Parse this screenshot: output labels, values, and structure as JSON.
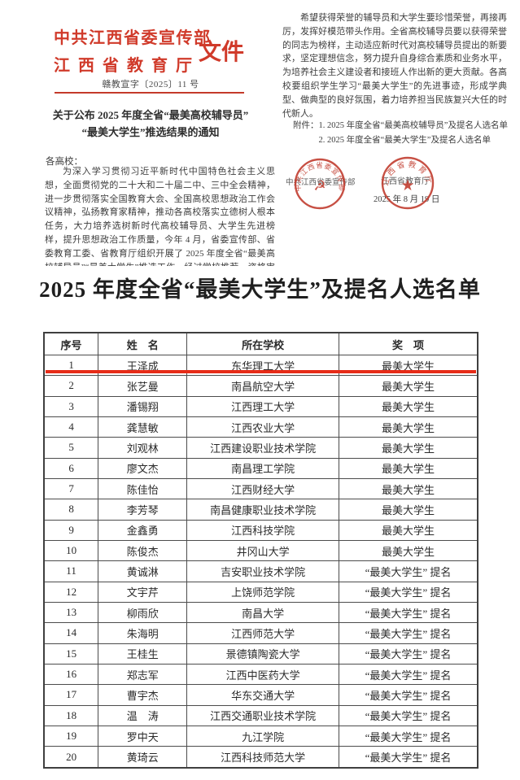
{
  "colors": {
    "header_red": "#d03a2a",
    "seal_red": "#c0392b",
    "highlight_red": "#e62c18",
    "text_dark": "#3a3a3a"
  },
  "page1": {
    "org_line1": "中共江西省委宣传部",
    "org_line2": "江西省教育厅",
    "doc_type": "文件",
    "doc_number": "赣教宣字〔2025〕11 号",
    "title_line1": "关于公布 2025 年度全省“最美高校辅导员”",
    "title_line2": "“最美大学生”推选结果的通知",
    "salutation": "各高校：",
    "body": "为深入学习贯彻习近平新时代中国特色社会主义思想，全面贯彻党的二十大和二十届二中、三中全会精神，进一步贯彻落实全国教育大会、全国高校思想政治工作会议精神，弘扬教育家精神，推动各高校落实立德树人根本任务，大力培养选树新时代高校辅导员、大学生先进榜样，提升思想政治工作质量，今年 4 月，省委宣传部、省委教育工委、省教育厅组织开展了 2025 年度全省“最美高校辅导员”“最美大学生”推选工作，经过学校推荐、资格审核、专家评审、公示等环节，现将推选结果予以公布(详见"
  },
  "page2": {
    "body": "希望获得荣誉的辅导员和大学生要珍惜荣誉，再接再厉，发挥好模范带头作用。全省高校辅导员要以获得荣誉的同志为榜样，主动适应新时代对高校辅导员提出的新要求，坚定理想信念，努力提升自身综合素质和业务水平，为培养社会主义建设者和接班人作出新的更大贡献。各高校要组织学生学习“最美大学生”的先进事迹，形成学典型、做典型的良好氛围，着力培养担当民族复兴大任的时代新人。",
    "attachment_label": "附件：",
    "attachment_1": "1. 2025 年度全省“最美高校辅导员”及提名人选名单",
    "attachment_2": "2. 2025 年度全省“最美大学生”及提名人选名单",
    "seal_1_text": "中共江西省委宣传部",
    "seal_2_text": "江西省教育厅",
    "signer_1": "中共江西省委宣传部",
    "signer_2": "江西省教育厅",
    "date": "2025 年 8 月 19 日"
  },
  "appendix": {
    "title": "2025 年度全省“最美大学生”及提名人选名单",
    "table": {
      "headers": [
        "序号",
        "姓　名",
        "所在学校",
        "奖　项"
      ],
      "rows": [
        [
          "1",
          "王泽成",
          "东华理工大学",
          "最美大学生"
        ],
        [
          "2",
          "张艺曼",
          "南昌航空大学",
          "最美大学生"
        ],
        [
          "3",
          "潘锡翔",
          "江西理工大学",
          "最美大学生"
        ],
        [
          "4",
          "龚慧敏",
          "江西农业大学",
          "最美大学生"
        ],
        [
          "5",
          "刘观林",
          "江西建设职业技术学院",
          "最美大学生"
        ],
        [
          "6",
          "廖文杰",
          "南昌理工学院",
          "最美大学生"
        ],
        [
          "7",
          "陈佳怡",
          "江西财经大学",
          "最美大学生"
        ],
        [
          "8",
          "李芳琴",
          "南昌健康职业技术学院",
          "最美大学生"
        ],
        [
          "9",
          "金鑫勇",
          "江西科技学院",
          "最美大学生"
        ],
        [
          "10",
          "陈俊杰",
          "井冈山大学",
          "最美大学生"
        ],
        [
          "11",
          "黄诚淋",
          "吉安职业技术学院",
          "“最美大学生” 提名"
        ],
        [
          "12",
          "文宇芹",
          "上饶师范学院",
          "“最美大学生” 提名"
        ],
        [
          "13",
          "柳雨欣",
          "南昌大学",
          "“最美大学生” 提名"
        ],
        [
          "14",
          "朱海明",
          "江西师范大学",
          "“最美大学生” 提名"
        ],
        [
          "15",
          "王桂生",
          "景德镇陶瓷大学",
          "“最美大学生” 提名"
        ],
        [
          "16",
          "郑志军",
          "江西中医药大学",
          "“最美大学生” 提名"
        ],
        [
          "17",
          "曹宇杰",
          "华东交通大学",
          "“最美大学生” 提名"
        ],
        [
          "18",
          "温　涛",
          "江西交通职业技术学院",
          "“最美大学生” 提名"
        ],
        [
          "19",
          "罗中天",
          "九江学院",
          "“最美大学生” 提名"
        ],
        [
          "20",
          "黄琦云",
          "江西科技师范大学",
          "“最美大学生” 提名"
        ]
      ],
      "highlighted_row": 1
    }
  }
}
